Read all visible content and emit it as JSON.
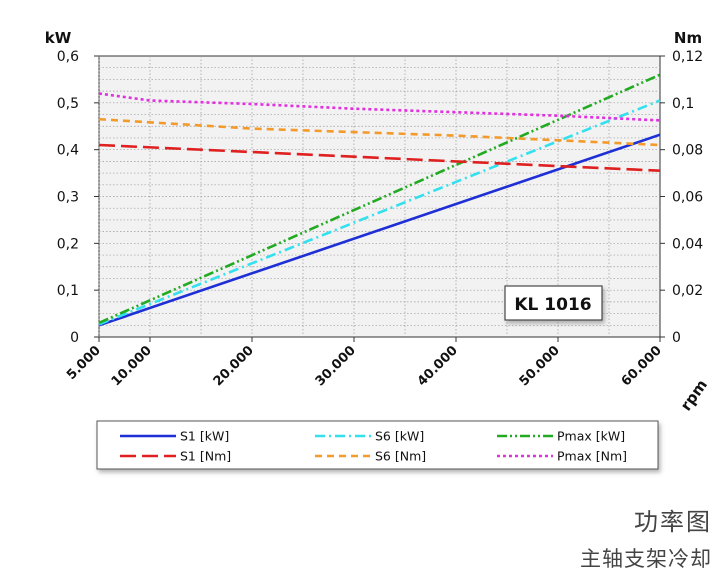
{
  "chart_data": {
    "type": "line",
    "title": "",
    "xlabel": "rpm",
    "ylabel_left": "kW",
    "ylabel_right": "Nm",
    "x_ticks": [
      "5.000",
      "10.000",
      "20.000",
      "30.000",
      "40.000",
      "50.000",
      "60.000"
    ],
    "y_left_ticks": [
      "0",
      "0,1",
      "0,2",
      "0,3",
      "0,4",
      "0,5",
      "0,6"
    ],
    "y_right_ticks": [
      "0",
      "0,02",
      "0,04",
      "0,06",
      "0,08",
      "0,1",
      "0,12"
    ],
    "xlim": [
      5000,
      60000
    ],
    "ylim_left": [
      0,
      0.6
    ],
    "ylim_right": [
      0,
      0.12
    ],
    "grid": true,
    "annotation": "KL 1016",
    "legend_position": "bottom",
    "series": [
      {
        "name": "S1 [kW]",
        "axis": "left",
        "color": "#1f2fd6",
        "dash": "solid",
        "x": [
          5000,
          60000
        ],
        "y": [
          0.025,
          0.432
        ]
      },
      {
        "name": "S6 [kW]",
        "axis": "left",
        "color": "#33e0ee",
        "dash": "dashdot",
        "x": [
          5000,
          60000
        ],
        "y": [
          0.027,
          0.505
        ]
      },
      {
        "name": "Pmax [kW]",
        "axis": "left",
        "color": "#22aa22",
        "dash": "dashdotdot",
        "x": [
          5000,
          60000
        ],
        "y": [
          0.03,
          0.56
        ]
      },
      {
        "name": "S1 [Nm]",
        "axis": "right",
        "color": "#e02020",
        "dash": "longdash",
        "x": [
          5000,
          20000,
          40000,
          60000
        ],
        "y": [
          0.082,
          0.079,
          0.075,
          0.071
        ]
      },
      {
        "name": "S6 [Nm]",
        "axis": "right",
        "color": "#f39a2a",
        "dash": "dash",
        "x": [
          5000,
          20000,
          40000,
          60000
        ],
        "y": [
          0.093,
          0.089,
          0.086,
          0.082
        ]
      },
      {
        "name": "Pmax [Nm]",
        "axis": "right",
        "color": "#e030e0",
        "dash": "dot",
        "x": [
          5000,
          10000,
          20000,
          30000,
          40000,
          50000,
          60000
        ],
        "y": [
          0.104,
          0.101,
          0.0995,
          0.0975,
          0.096,
          0.0945,
          0.0925
        ]
      }
    ]
  },
  "captions": {
    "line1": "功率图",
    "line2": "主轴支架冷却"
  }
}
